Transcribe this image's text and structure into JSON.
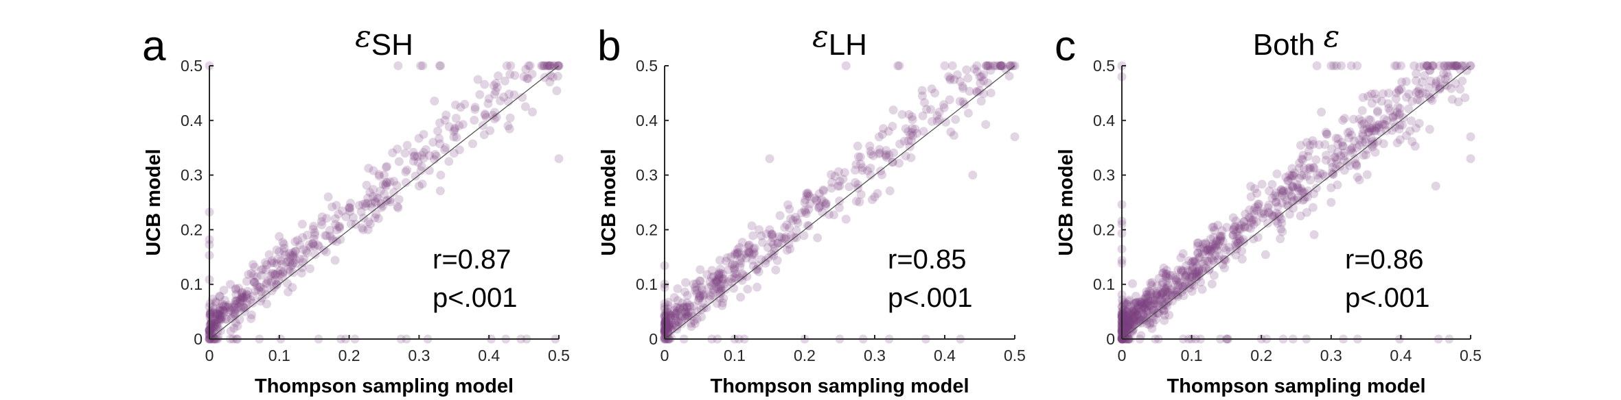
{
  "colors": {
    "points": "#7b3f7f",
    "diagonal": "#4a4a4a"
  },
  "chart_data": [
    {
      "type": "scatter",
      "panel_letter": "a",
      "title_symbol": "ε",
      "title_sub": "SH",
      "title_text": "",
      "xlabel": "Thompson sampling model",
      "ylabel": "UCB model",
      "xlim": [
        0,
        0.5
      ],
      "ylim": [
        0,
        0.5
      ],
      "xticks": [
        "0",
        "0.1",
        "0.2",
        "0.3",
        "0.4",
        "0.5"
      ],
      "yticks": [
        "0",
        "0.1",
        "0.2",
        "0.3",
        "0.4",
        "0.5"
      ],
      "reference_line": "identity",
      "annotation_r": "r=0.87",
      "annotation_p": "p<.001",
      "point_alpha": 0.22,
      "points": [
        [
          0.02,
          0.06
        ],
        [
          0.04,
          0.07
        ],
        [
          0.05,
          0.05
        ],
        [
          0.07,
          0.09
        ],
        [
          0.09,
          0.12
        ],
        [
          0.12,
          0.15
        ],
        [
          0.15,
          0.17
        ],
        [
          0.18,
          0.22
        ],
        [
          0.2,
          0.24
        ],
        [
          0.25,
          0.3
        ],
        [
          0.28,
          0.34
        ],
        [
          0.32,
          0.36
        ],
        [
          0.38,
          0.42
        ],
        [
          0.45,
          0.48
        ],
        [
          0.5,
          0.5
        ],
        [
          0.0,
          0.0
        ],
        [
          0.0,
          0.5
        ],
        [
          0.1,
          0.16
        ],
        [
          0.08,
          0.14
        ],
        [
          0.03,
          0.1
        ],
        [
          0.06,
          0.12
        ],
        [
          0.22,
          0.2
        ],
        [
          0.14,
          0.19
        ],
        [
          0.3,
          0.28
        ],
        [
          0.4,
          0.44
        ],
        [
          0.5,
          0.33
        ],
        [
          0.35,
          0.34
        ],
        [
          0.27,
          0.24
        ],
        [
          0.17,
          0.26
        ],
        [
          0.01,
          0.03
        ]
      ],
      "point_count": 520
    },
    {
      "type": "scatter",
      "panel_letter": "b",
      "title_symbol": "ε",
      "title_sub": "LH",
      "title_text": "",
      "xlabel": "Thompson sampling model",
      "ylabel": "UCB model",
      "xlim": [
        0,
        0.5
      ],
      "ylim": [
        0,
        0.5
      ],
      "xticks": [
        "0",
        "0.1",
        "0.2",
        "0.3",
        "0.4",
        "0.5"
      ],
      "yticks": [
        "0",
        "0.1",
        "0.2",
        "0.3",
        "0.4",
        "0.5"
      ],
      "reference_line": "identity",
      "annotation_r": "r=0.85",
      "annotation_p": "p<.001",
      "point_alpha": 0.22,
      "points": [
        [
          0.05,
          0.08
        ],
        [
          0.07,
          0.09
        ],
        [
          0.1,
          0.12
        ],
        [
          0.12,
          0.16
        ],
        [
          0.15,
          0.2
        ],
        [
          0.18,
          0.22
        ],
        [
          0.2,
          0.25
        ],
        [
          0.25,
          0.28
        ],
        [
          0.28,
          0.32
        ],
        [
          0.32,
          0.38
        ],
        [
          0.38,
          0.42
        ],
        [
          0.45,
          0.48
        ],
        [
          0.5,
          0.5
        ],
        [
          0.0,
          0.0
        ],
        [
          0.1,
          0.0
        ],
        [
          0.2,
          0.0
        ],
        [
          0.25,
          0.0
        ],
        [
          0.15,
          0.33
        ],
        [
          0.08,
          0.12
        ],
        [
          0.22,
          0.24
        ],
        [
          0.4,
          0.5
        ],
        [
          0.48,
          0.5
        ],
        [
          0.5,
          0.37
        ],
        [
          0.44,
          0.3
        ],
        [
          0.3,
          0.26
        ],
        [
          0.03,
          0.05
        ]
      ],
      "point_count": 520
    },
    {
      "type": "scatter",
      "panel_letter": "c",
      "title_symbol": "ε",
      "title_sub": "",
      "title_text": "Both",
      "xlabel": "Thompson sampling model",
      "ylabel": "UCB model",
      "xlim": [
        0,
        0.5
      ],
      "ylim": [
        0,
        0.5
      ],
      "xticks": [
        "0",
        "0.1",
        "0.2",
        "0.3",
        "0.4",
        "0.5"
      ],
      "yticks": [
        "0",
        "0.1",
        "0.2",
        "0.3",
        "0.4",
        "0.5"
      ],
      "reference_line": "identity",
      "annotation_r": "r=0.86",
      "annotation_p": "p<.001",
      "point_alpha": 0.22,
      "points": [
        [
          0.02,
          0.05
        ],
        [
          0.05,
          0.08
        ],
        [
          0.08,
          0.11
        ],
        [
          0.1,
          0.14
        ],
        [
          0.13,
          0.17
        ],
        [
          0.16,
          0.2
        ],
        [
          0.2,
          0.23
        ],
        [
          0.24,
          0.27
        ],
        [
          0.28,
          0.3
        ],
        [
          0.33,
          0.35
        ],
        [
          0.38,
          0.4
        ],
        [
          0.44,
          0.46
        ],
        [
          0.5,
          0.5
        ],
        [
          0.0,
          0.0
        ],
        [
          0.0,
          0.5
        ],
        [
          0.0,
          0.48
        ],
        [
          0.1,
          0.0
        ],
        [
          0.15,
          0.0
        ],
        [
          0.2,
          0.0
        ],
        [
          0.3,
          0.5
        ],
        [
          0.4,
          0.5
        ],
        [
          0.48,
          0.5
        ],
        [
          0.5,
          0.33
        ],
        [
          0.5,
          0.37
        ],
        [
          0.45,
          0.28
        ],
        [
          0.3,
          0.25
        ],
        [
          0.06,
          0.13
        ]
      ],
      "point_count": 900
    }
  ]
}
